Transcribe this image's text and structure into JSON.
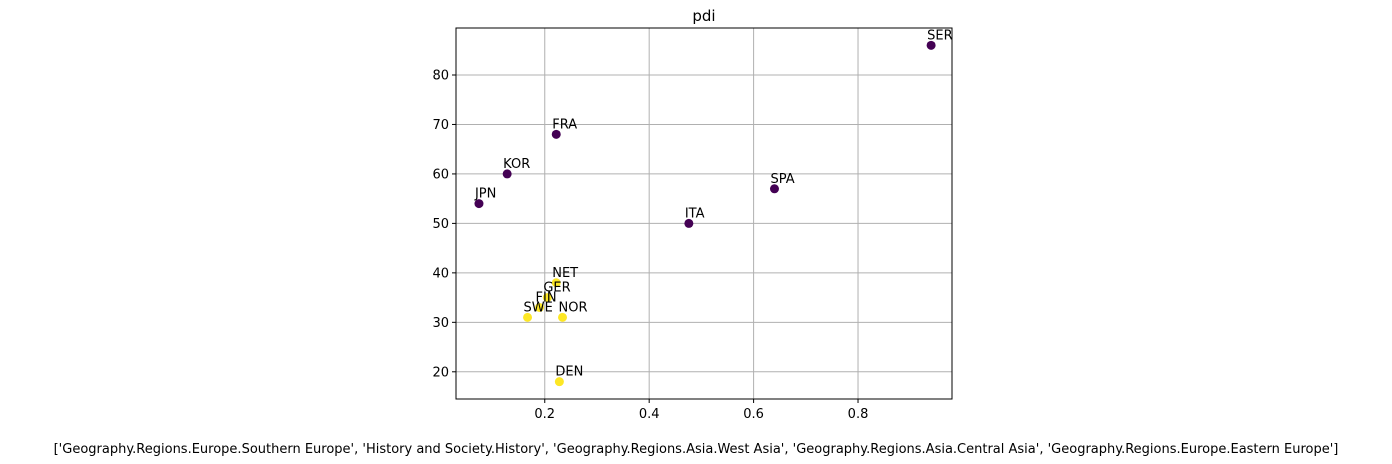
{
  "chart_data": {
    "type": "scatter",
    "title": "pdi",
    "xlabel": "['Geography.Regions.Europe.Southern Europe', 'History and Society.History', 'Geography.Regions.Asia.West Asia', 'Geography.Regions.Asia.Central Asia', 'Geography.Regions.Europe.Eastern Europe']",
    "ylabel": "",
    "xlim": [
      0.03,
      0.98
    ],
    "ylim": [
      14.5,
      89.5
    ],
    "xticks": [
      0.2,
      0.4,
      0.6,
      0.8
    ],
    "xtick_labels": [
      "0.2",
      "0.4",
      "0.6",
      "0.8"
    ],
    "yticks": [
      20,
      30,
      40,
      50,
      60,
      70,
      80
    ],
    "ytick_labels": [
      "20",
      "30",
      "40",
      "50",
      "60",
      "70",
      "80"
    ],
    "grid": true,
    "colors": {
      "cluster_0": "#440154",
      "cluster_1": "#fde725"
    },
    "points": [
      {
        "label": "SER",
        "x": 0.94,
        "y": 86,
        "cluster": 0
      },
      {
        "label": "FRA",
        "x": 0.222,
        "y": 68,
        "cluster": 0
      },
      {
        "label": "KOR",
        "x": 0.128,
        "y": 60,
        "cluster": 0
      },
      {
        "label": "SPA",
        "x": 0.64,
        "y": 57,
        "cluster": 0
      },
      {
        "label": "JPN",
        "x": 0.074,
        "y": 54,
        "cluster": 0
      },
      {
        "label": "ITA",
        "x": 0.476,
        "y": 50,
        "cluster": 0
      },
      {
        "label": "NET",
        "x": 0.222,
        "y": 38,
        "cluster": 1
      },
      {
        "label": "GER",
        "x": 0.205,
        "y": 35,
        "cluster": 1
      },
      {
        "label": "FIN",
        "x": 0.19,
        "y": 33,
        "cluster": 1
      },
      {
        "label": "SWE",
        "x": 0.167,
        "y": 31,
        "cluster": 1
      },
      {
        "label": "NOR",
        "x": 0.234,
        "y": 31,
        "cluster": 1
      },
      {
        "label": "DEN",
        "x": 0.228,
        "y": 18,
        "cluster": 1
      }
    ]
  }
}
